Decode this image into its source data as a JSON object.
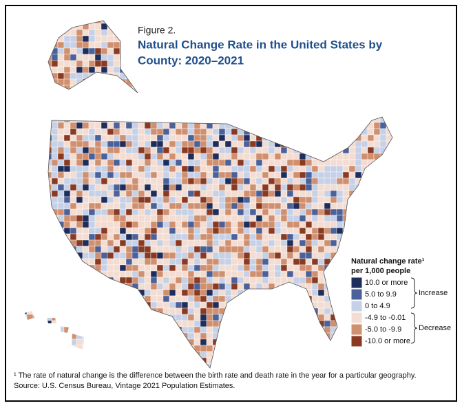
{
  "figure_label": "Figure 2.",
  "title_line1": "Natural Change Rate in the United States by",
  "title_line2": "County: 2020–2021",
  "legend": {
    "title_line1": "Natural change rate¹",
    "title_line2": "per 1,000 people",
    "items": [
      {
        "label": "10.0 or more",
        "color": "#1d2d5c"
      },
      {
        "label": "5.0 to 9.9",
        "color": "#4b6199"
      },
      {
        "label": "0 to 4.9",
        "color": "#c6d1e7"
      },
      {
        "label": "-4.9 to -0.01",
        "color": "#f3ddd3"
      },
      {
        "label": "-5.0 to -9.9",
        "color": "#d0906f"
      },
      {
        "label": "-10.0 or more",
        "color": "#8b3a22"
      }
    ],
    "groups": [
      {
        "label": "Increase"
      },
      {
        "label": "Decrease"
      }
    ]
  },
  "footnote": "¹ The rate of natural change is the difference between the birth rate and death rate in the year for a particular geography.",
  "source": "Source: U.S. Census Bureau, Vintage 2021 Population Estimates."
}
